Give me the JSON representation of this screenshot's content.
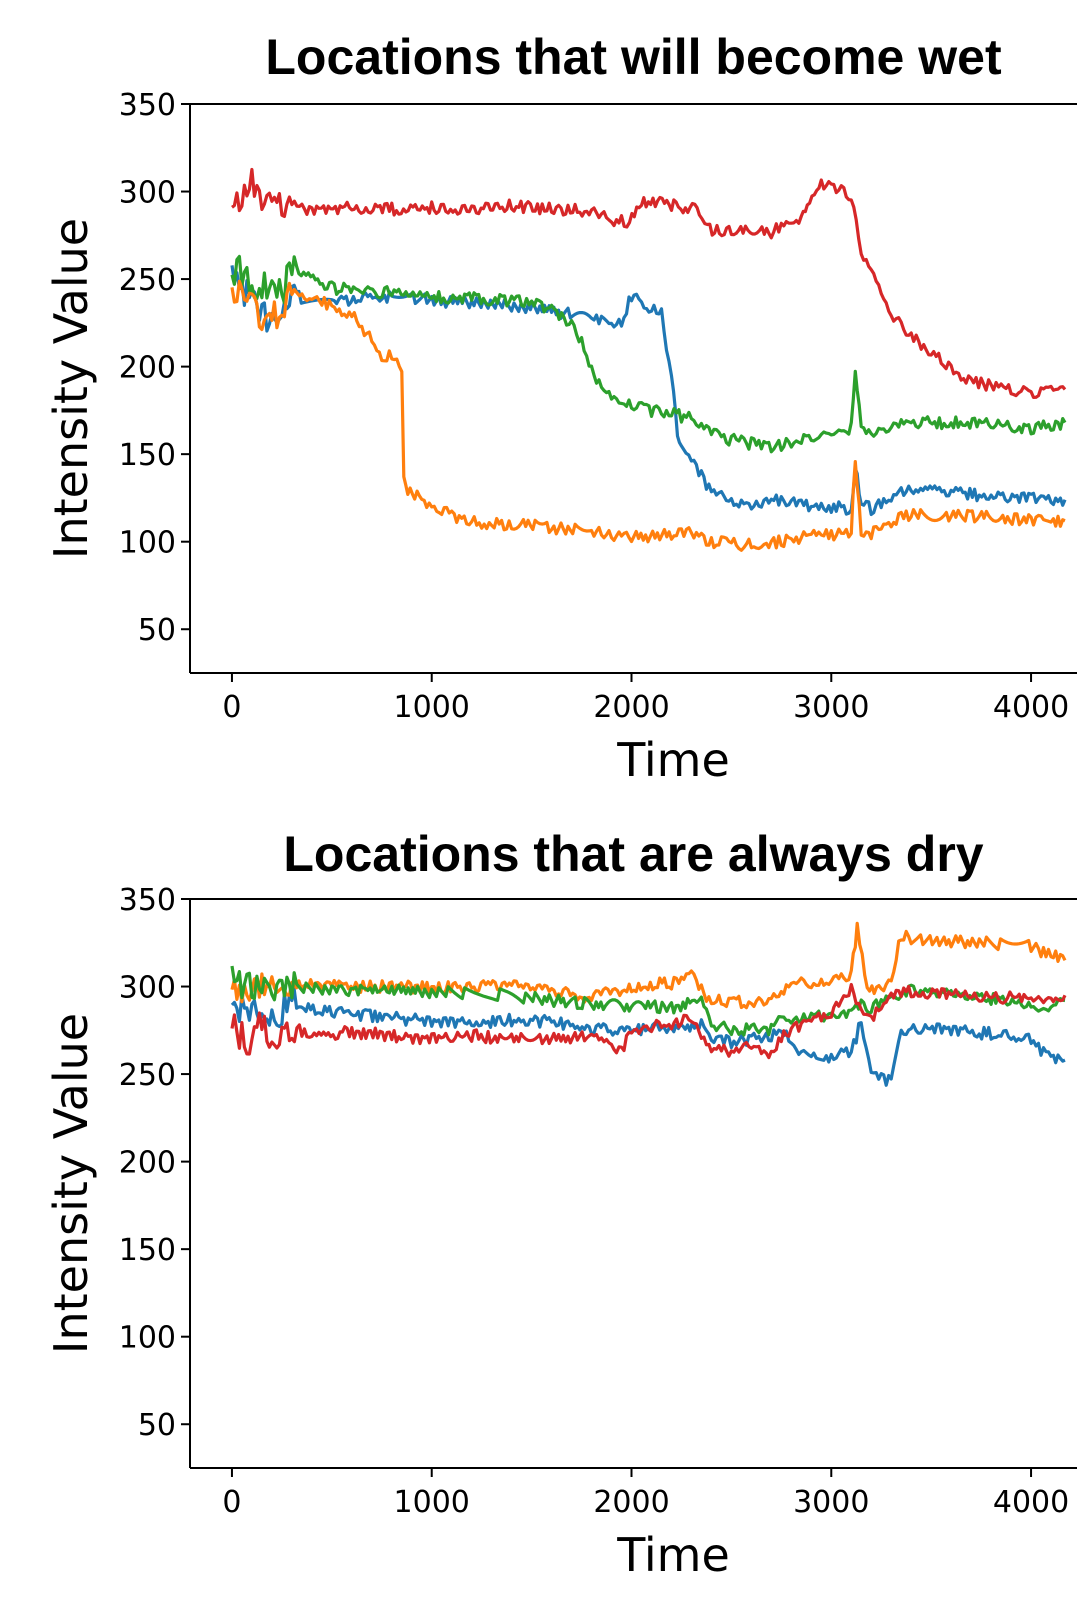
{
  "chart_data": [
    {
      "type": "line",
      "title": "Locations that will become wet",
      "xlabel": "Time",
      "ylabel": "Intensity Value",
      "xlim": [
        -210,
        4230
      ],
      "ylim": [
        25,
        350
      ],
      "xticks": [
        "0",
        "1000",
        "2000",
        "3000",
        "4000"
      ],
      "yticks": [
        "50",
        "100",
        "150",
        "200",
        "250",
        "300",
        "350"
      ],
      "grid": false,
      "legend": "none",
      "series": [
        {
          "color": "#d62728",
          "x": [
            0,
            50,
            100,
            150,
            200,
            250,
            300,
            400,
            600,
            800,
            1000,
            1200,
            1400,
            1600,
            1800,
            1900,
            1950,
            1990,
            2050,
            2200,
            2340,
            2380,
            2500,
            2700,
            2750,
            2800,
            2850,
            2880,
            2950,
            3000,
            3050,
            3100,
            3150,
            3200,
            3250,
            3300,
            3400,
            3500,
            3600,
            3700,
            3800,
            3900,
            4000,
            4100,
            4170
          ],
          "y": [
            300,
            295,
            305,
            290,
            300,
            295,
            290,
            290,
            291,
            290,
            291,
            290,
            292,
            290,
            289,
            284,
            283,
            282,
            295,
            292,
            290,
            278,
            278,
            277,
            280,
            282,
            285,
            290,
            305,
            302,
            300,
            298,
            265,
            255,
            245,
            230,
            217,
            208,
            199,
            192,
            189,
            186,
            185,
            186,
            187
          ]
        },
        {
          "color": "#1f77b4",
          "x": [
            0,
            50,
            100,
            150,
            200,
            250,
            300,
            500,
            800,
            1000,
            1200,
            1400,
            1600,
            1800,
            1900,
            1950,
            2000,
            2050,
            2100,
            2150,
            2200,
            2230,
            2260,
            2300,
            2350,
            2400,
            2500,
            2600,
            2700,
            2800,
            2900,
            3000,
            3100,
            3120,
            3150,
            3200,
            3300,
            3400,
            3600,
            3800,
            4000,
            4100,
            4170
          ],
          "y": [
            250,
            245,
            238,
            230,
            228,
            232,
            240,
            238,
            240,
            238,
            236,
            235,
            232,
            228,
            226,
            225,
            240,
            236,
            232,
            230,
            195,
            160,
            150,
            145,
            138,
            128,
            124,
            122,
            124,
            122,
            121,
            120,
            119,
            145,
            122,
            119,
            125,
            130,
            128,
            126,
            125,
            124,
            124
          ]
        },
        {
          "color": "#2ca02c",
          "x": [
            0,
            50,
            100,
            150,
            200,
            250,
            300,
            500,
            800,
            1000,
            1200,
            1400,
            1500,
            1600,
            1700,
            1750,
            1800,
            1850,
            1900,
            1950,
            2000,
            2100,
            2200,
            2300,
            2350,
            2400,
            2500,
            2600,
            2700,
            2800,
            2900,
            3000,
            3100,
            3120,
            3150,
            3200,
            3300,
            3400,
            3600,
            3800,
            4000,
            4100,
            4170
          ],
          "y": [
            252,
            255,
            248,
            245,
            250,
            242,
            255,
            245,
            242,
            240,
            239,
            238,
            237,
            232,
            225,
            215,
            200,
            188,
            182,
            179,
            177,
            175,
            173,
            170,
            168,
            162,
            158,
            156,
            154,
            157,
            160,
            162,
            165,
            195,
            167,
            163,
            166,
            168,
            168,
            167,
            165,
            166,
            168
          ]
        },
        {
          "color": "#ff7f0e",
          "x": [
            0,
            50,
            100,
            150,
            200,
            250,
            300,
            400,
            500,
            600,
            700,
            750,
            800,
            850,
            860,
            880,
            950,
            1000,
            1100,
            1200,
            1300,
            1400,
            1600,
            1800,
            1900,
            2000,
            2200,
            2300,
            2350,
            2400,
            2500,
            2600,
            2700,
            2800,
            2900,
            3000,
            3100,
            3120,
            3150,
            3200,
            3300,
            3400,
            3600,
            3800,
            4000,
            4100,
            4170
          ],
          "y": [
            246,
            240,
            235,
            230,
            228,
            230,
            245,
            238,
            235,
            230,
            215,
            207,
            206,
            200,
            135,
            130,
            125,
            120,
            115,
            112,
            110,
            110,
            108,
            106,
            104,
            103,
            104,
            106,
            103,
            100,
            99,
            98,
            99,
            101,
            103,
            104,
            105,
            148,
            106,
            105,
            112,
            116,
            115,
            114,
            112,
            111,
            112
          ]
        }
      ]
    },
    {
      "type": "line",
      "title": "Locations that are always dry",
      "xlabel": "Time",
      "ylabel": "Intensity Value",
      "xlim": [
        -210,
        4230
      ],
      "ylim": [
        25,
        350
      ],
      "xticks": [
        "0",
        "1000",
        "2000",
        "3000",
        "4000"
      ],
      "yticks": [
        "50",
        "100",
        "150",
        "200",
        "250",
        "300",
        "350"
      ],
      "grid": false,
      "legend": "none",
      "series": [
        {
          "color": "#1f77b4",
          "x": [
            0,
            100,
            200,
            300,
            500,
            800,
            1000,
            1200,
            1400,
            1600,
            1800,
            2000,
            2200,
            2350,
            2400,
            2500,
            2600,
            2700,
            2750,
            2800,
            2850,
            2900,
            3000,
            3100,
            3150,
            3200,
            3300,
            3350,
            3400,
            3600,
            3800,
            3900,
            4000,
            4100,
            4170
          ],
          "y": [
            290,
            285,
            282,
            290,
            285,
            282,
            280,
            279,
            281,
            280,
            276,
            275,
            277,
            278,
            270,
            268,
            270,
            272,
            276,
            268,
            262,
            259,
            260,
            262,
            280,
            250,
            246,
            272,
            276,
            275,
            273,
            271,
            270,
            258,
            258
          ]
        },
        {
          "color": "#ff7f0e",
          "x": [
            0,
            100,
            200,
            300,
            500,
            800,
            1000,
            1200,
            1400,
            1600,
            1800,
            2000,
            2200,
            2300,
            2350,
            2400,
            2500,
            2600,
            2700,
            2750,
            2800,
            2900,
            3000,
            3100,
            3130,
            3180,
            3250,
            3300,
            3350,
            3400,
            3600,
            3800,
            4000,
            4100,
            4170
          ],
          "y": [
            296,
            300,
            298,
            302,
            300,
            300,
            299,
            300,
            300,
            297,
            294,
            300,
            302,
            306,
            298,
            292,
            291,
            291,
            292,
            294,
            303,
            300,
            305,
            307,
            335,
            300,
            298,
            303,
            330,
            327,
            326,
            325,
            323,
            318,
            315
          ]
        },
        {
          "color": "#2ca02c",
          "x": [
            0,
            100,
            200,
            300,
            500,
            800,
            1000,
            1200,
            1400,
            1600,
            1800,
            2000,
            2200,
            2350,
            2400,
            2500,
            2600,
            2700,
            2750,
            2800,
            2900,
            3000,
            3100,
            3150,
            3200,
            3300,
            3400,
            3600,
            3800,
            4000,
            4100,
            4170
          ],
          "y": [
            305,
            298,
            296,
            300,
            298,
            298,
            297,
            296,
            295,
            292,
            290,
            289,
            288,
            292,
            278,
            276,
            275,
            276,
            282,
            278,
            283,
            284,
            286,
            290,
            287,
            295,
            298,
            296,
            293,
            290,
            288,
            292
          ]
        },
        {
          "color": "#d62728",
          "x": [
            0,
            50,
            100,
            150,
            200,
            250,
            300,
            400,
            600,
            800,
            1000,
            1200,
            1400,
            1600,
            1800,
            1900,
            1950,
            2000,
            2100,
            2200,
            2300,
            2350,
            2400,
            2500,
            2600,
            2700,
            2750,
            2800,
            2900,
            3000,
            3050,
            3100,
            3150,
            3200,
            3300,
            3400,
            3600,
            3800,
            4000,
            4100,
            4170
          ],
          "y": [
            278,
            272,
            268,
            282,
            270,
            268,
            278,
            272,
            274,
            272,
            270,
            272,
            270,
            270,
            271,
            265,
            262,
            275,
            277,
            279,
            282,
            270,
            265,
            262,
            266,
            262,
            270,
            275,
            280,
            285,
            292,
            298,
            285,
            282,
            296,
            297,
            295,
            294,
            293,
            294,
            295
          ]
        }
      ]
    }
  ]
}
